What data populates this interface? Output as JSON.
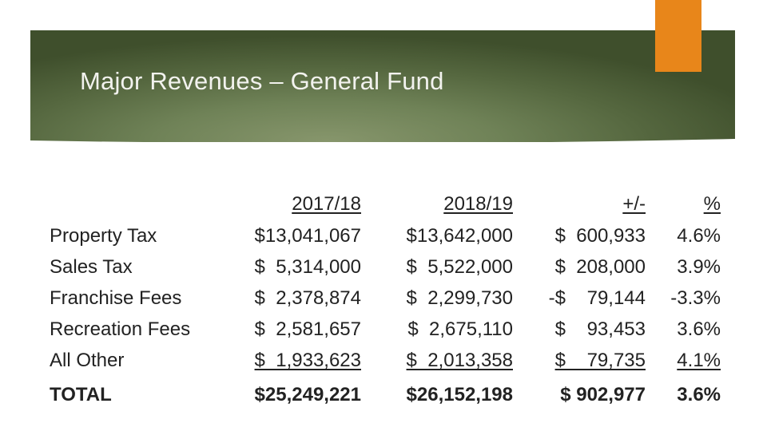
{
  "slide": {
    "title": "Major Revenues – General Fund",
    "colors": {
      "banner": "#5f7248",
      "accent": "#e8861a",
      "title_text": "#f2f2ee"
    }
  },
  "table": {
    "headers": [
      "2017/18",
      "2018/19",
      "+/-",
      "%"
    ],
    "rows": [
      {
        "label": "Property Tax",
        "fy1718": "$13,041,067",
        "fy1819": "$13,642,000",
        "change": "$  600,933",
        "pct": "4.6%"
      },
      {
        "label": "Sales Tax",
        "fy1718": "$  5,314,000",
        "fy1819": "$  5,522,000",
        "change": "$  208,000",
        "pct": "3.9%"
      },
      {
        "label": "Franchise Fees",
        "fy1718": "$  2,378,874",
        "fy1819": "$  2,299,730",
        "change": "-$    79,144",
        "pct": "-3.3%"
      },
      {
        "label": "Recreation Fees",
        "fy1718": "$  2,581,657",
        "fy1819": "$  2,675,110",
        "change": "$    93,453",
        "pct": "3.6%"
      },
      {
        "label": "All Other",
        "fy1718": "$  1,933,623",
        "fy1819": "$  2,013,358",
        "change": "$    79,735",
        "pct": "4.1%"
      }
    ],
    "total": {
      "label": "TOTAL",
      "fy1718": "$25,249,221",
      "fy1819": "$26,152,198",
      "change": "$ 902,977",
      "pct": "3.6%"
    }
  }
}
